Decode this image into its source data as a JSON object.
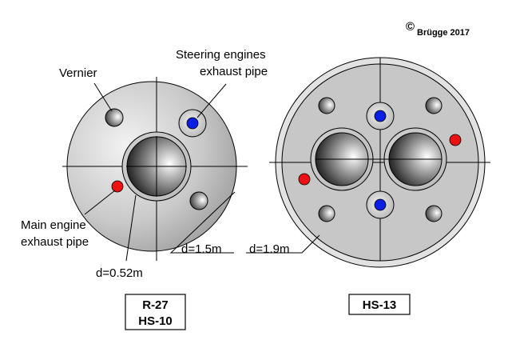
{
  "copyright": {
    "symbol": "©",
    "text": "Brügge 2017"
  },
  "left_diagram": {
    "vernier_label": "Vernier",
    "steering_label_line1": "Steering engines",
    "steering_label_line2": "exhaust pipe",
    "main_label_line1": "Main engine",
    "main_label_line2": "exhaust pipe",
    "nozzle_dim": "d=0.52m",
    "body_dim": "d=1.5m",
    "caption_line1": "R-27",
    "caption_line2": "HS-10"
  },
  "right_diagram": {
    "body_dim": "d=1.9m",
    "caption": "HS-13"
  },
  "colors": {
    "steering": "#0a1ee6",
    "main_exhaust": "#ee1111",
    "body": "#c8c8c8",
    "outline": "#000000"
  }
}
